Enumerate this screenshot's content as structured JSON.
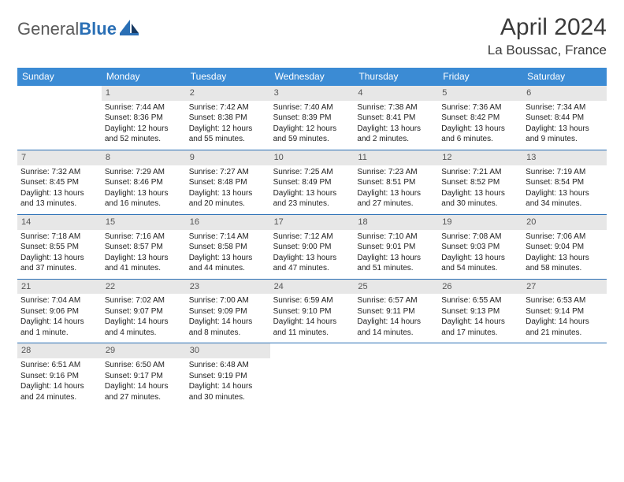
{
  "brand": {
    "part1": "General",
    "part2": "Blue"
  },
  "title": "April 2024",
  "location": "La Boussac, France",
  "colors": {
    "header_bg": "#3b8bd4",
    "rule": "#2a6fb5",
    "daynum_bg": "#e7e7e7",
    "text": "#222222",
    "logo_gray": "#5a5a5a",
    "logo_blue": "#2a6fb5"
  },
  "dow": [
    "Sunday",
    "Monday",
    "Tuesday",
    "Wednesday",
    "Thursday",
    "Friday",
    "Saturday"
  ],
  "weeks": [
    [
      {
        "n": "",
        "sr": "",
        "ss": "",
        "d1": "",
        "d2": ""
      },
      {
        "n": "1",
        "sr": "Sunrise: 7:44 AM",
        "ss": "Sunset: 8:36 PM",
        "d1": "Daylight: 12 hours",
        "d2": "and 52 minutes."
      },
      {
        "n": "2",
        "sr": "Sunrise: 7:42 AM",
        "ss": "Sunset: 8:38 PM",
        "d1": "Daylight: 12 hours",
        "d2": "and 55 minutes."
      },
      {
        "n": "3",
        "sr": "Sunrise: 7:40 AM",
        "ss": "Sunset: 8:39 PM",
        "d1": "Daylight: 12 hours",
        "d2": "and 59 minutes."
      },
      {
        "n": "4",
        "sr": "Sunrise: 7:38 AM",
        "ss": "Sunset: 8:41 PM",
        "d1": "Daylight: 13 hours",
        "d2": "and 2 minutes."
      },
      {
        "n": "5",
        "sr": "Sunrise: 7:36 AM",
        "ss": "Sunset: 8:42 PM",
        "d1": "Daylight: 13 hours",
        "d2": "and 6 minutes."
      },
      {
        "n": "6",
        "sr": "Sunrise: 7:34 AM",
        "ss": "Sunset: 8:44 PM",
        "d1": "Daylight: 13 hours",
        "d2": "and 9 minutes."
      }
    ],
    [
      {
        "n": "7",
        "sr": "Sunrise: 7:32 AM",
        "ss": "Sunset: 8:45 PM",
        "d1": "Daylight: 13 hours",
        "d2": "and 13 minutes."
      },
      {
        "n": "8",
        "sr": "Sunrise: 7:29 AM",
        "ss": "Sunset: 8:46 PM",
        "d1": "Daylight: 13 hours",
        "d2": "and 16 minutes."
      },
      {
        "n": "9",
        "sr": "Sunrise: 7:27 AM",
        "ss": "Sunset: 8:48 PM",
        "d1": "Daylight: 13 hours",
        "d2": "and 20 minutes."
      },
      {
        "n": "10",
        "sr": "Sunrise: 7:25 AM",
        "ss": "Sunset: 8:49 PM",
        "d1": "Daylight: 13 hours",
        "d2": "and 23 minutes."
      },
      {
        "n": "11",
        "sr": "Sunrise: 7:23 AM",
        "ss": "Sunset: 8:51 PM",
        "d1": "Daylight: 13 hours",
        "d2": "and 27 minutes."
      },
      {
        "n": "12",
        "sr": "Sunrise: 7:21 AM",
        "ss": "Sunset: 8:52 PM",
        "d1": "Daylight: 13 hours",
        "d2": "and 30 minutes."
      },
      {
        "n": "13",
        "sr": "Sunrise: 7:19 AM",
        "ss": "Sunset: 8:54 PM",
        "d1": "Daylight: 13 hours",
        "d2": "and 34 minutes."
      }
    ],
    [
      {
        "n": "14",
        "sr": "Sunrise: 7:18 AM",
        "ss": "Sunset: 8:55 PM",
        "d1": "Daylight: 13 hours",
        "d2": "and 37 minutes."
      },
      {
        "n": "15",
        "sr": "Sunrise: 7:16 AM",
        "ss": "Sunset: 8:57 PM",
        "d1": "Daylight: 13 hours",
        "d2": "and 41 minutes."
      },
      {
        "n": "16",
        "sr": "Sunrise: 7:14 AM",
        "ss": "Sunset: 8:58 PM",
        "d1": "Daylight: 13 hours",
        "d2": "and 44 minutes."
      },
      {
        "n": "17",
        "sr": "Sunrise: 7:12 AM",
        "ss": "Sunset: 9:00 PM",
        "d1": "Daylight: 13 hours",
        "d2": "and 47 minutes."
      },
      {
        "n": "18",
        "sr": "Sunrise: 7:10 AM",
        "ss": "Sunset: 9:01 PM",
        "d1": "Daylight: 13 hours",
        "d2": "and 51 minutes."
      },
      {
        "n": "19",
        "sr": "Sunrise: 7:08 AM",
        "ss": "Sunset: 9:03 PM",
        "d1": "Daylight: 13 hours",
        "d2": "and 54 minutes."
      },
      {
        "n": "20",
        "sr": "Sunrise: 7:06 AM",
        "ss": "Sunset: 9:04 PM",
        "d1": "Daylight: 13 hours",
        "d2": "and 58 minutes."
      }
    ],
    [
      {
        "n": "21",
        "sr": "Sunrise: 7:04 AM",
        "ss": "Sunset: 9:06 PM",
        "d1": "Daylight: 14 hours",
        "d2": "and 1 minute."
      },
      {
        "n": "22",
        "sr": "Sunrise: 7:02 AM",
        "ss": "Sunset: 9:07 PM",
        "d1": "Daylight: 14 hours",
        "d2": "and 4 minutes."
      },
      {
        "n": "23",
        "sr": "Sunrise: 7:00 AM",
        "ss": "Sunset: 9:09 PM",
        "d1": "Daylight: 14 hours",
        "d2": "and 8 minutes."
      },
      {
        "n": "24",
        "sr": "Sunrise: 6:59 AM",
        "ss": "Sunset: 9:10 PM",
        "d1": "Daylight: 14 hours",
        "d2": "and 11 minutes."
      },
      {
        "n": "25",
        "sr": "Sunrise: 6:57 AM",
        "ss": "Sunset: 9:11 PM",
        "d1": "Daylight: 14 hours",
        "d2": "and 14 minutes."
      },
      {
        "n": "26",
        "sr": "Sunrise: 6:55 AM",
        "ss": "Sunset: 9:13 PM",
        "d1": "Daylight: 14 hours",
        "d2": "and 17 minutes."
      },
      {
        "n": "27",
        "sr": "Sunrise: 6:53 AM",
        "ss": "Sunset: 9:14 PM",
        "d1": "Daylight: 14 hours",
        "d2": "and 21 minutes."
      }
    ],
    [
      {
        "n": "28",
        "sr": "Sunrise: 6:51 AM",
        "ss": "Sunset: 9:16 PM",
        "d1": "Daylight: 14 hours",
        "d2": "and 24 minutes."
      },
      {
        "n": "29",
        "sr": "Sunrise: 6:50 AM",
        "ss": "Sunset: 9:17 PM",
        "d1": "Daylight: 14 hours",
        "d2": "and 27 minutes."
      },
      {
        "n": "30",
        "sr": "Sunrise: 6:48 AM",
        "ss": "Sunset: 9:19 PM",
        "d1": "Daylight: 14 hours",
        "d2": "and 30 minutes."
      },
      {
        "n": "",
        "sr": "",
        "ss": "",
        "d1": "",
        "d2": ""
      },
      {
        "n": "",
        "sr": "",
        "ss": "",
        "d1": "",
        "d2": ""
      },
      {
        "n": "",
        "sr": "",
        "ss": "",
        "d1": "",
        "d2": ""
      },
      {
        "n": "",
        "sr": "",
        "ss": "",
        "d1": "",
        "d2": ""
      }
    ]
  ]
}
